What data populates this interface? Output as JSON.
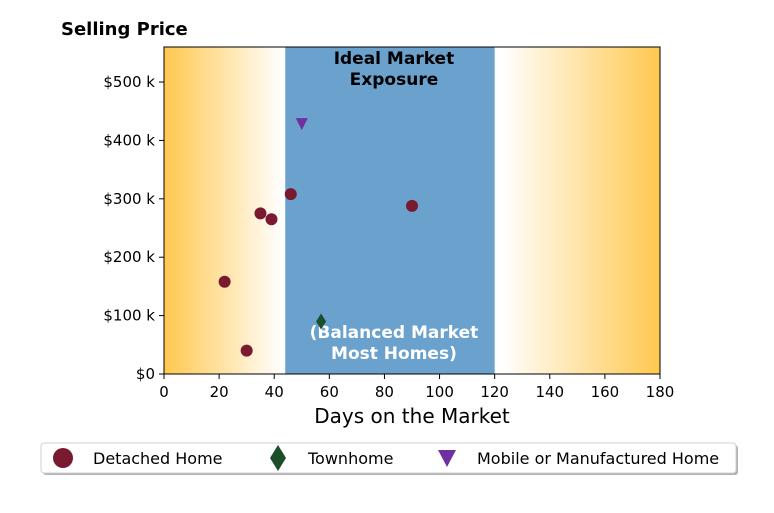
{
  "chart_data": {
    "type": "scatter",
    "title": "Selling Price",
    "xlabel": "Days on the Market",
    "ylabel": "",
    "xlim": [
      0,
      180
    ],
    "ylim": [
      0,
      560000
    ],
    "x_ticks": [
      0,
      20,
      40,
      60,
      80,
      100,
      120,
      140,
      160,
      180
    ],
    "y_ticks": [
      0,
      100000,
      200000,
      300000,
      400000,
      500000
    ],
    "y_tick_labels": [
      "$0",
      "$100 k",
      "$200 k",
      "$300 k",
      "$400 k",
      "$500 k"
    ],
    "grid": false,
    "legend_position": "bottom",
    "region": {
      "x_range": [
        44,
        120
      ],
      "color": "#6aa1cd",
      "label_top": [
        "Ideal Market",
        "Exposure"
      ],
      "label_bottom": [
        "(Balanced Market",
        "Most Homes)"
      ]
    },
    "background_gradient": {
      "edge_color": "#ffc84f",
      "center_color": "#ffffff"
    },
    "series": [
      {
        "name": "Detached Home",
        "marker": "circle",
        "color": "#7a1a30",
        "points": [
          [
            22,
            158000
          ],
          [
            30,
            40000
          ],
          [
            35,
            275000
          ],
          [
            39,
            265000
          ],
          [
            46,
            308000
          ],
          [
            90,
            288000
          ]
        ]
      },
      {
        "name": "Townhome",
        "marker": "diamond",
        "color": "#1a4f2a",
        "points": [
          [
            57,
            90000
          ]
        ]
      },
      {
        "name": "Mobile or Manufactured Home",
        "marker": "triangle-down",
        "color": "#7030a0",
        "points": [
          [
            50,
            428000
          ]
        ]
      }
    ]
  }
}
